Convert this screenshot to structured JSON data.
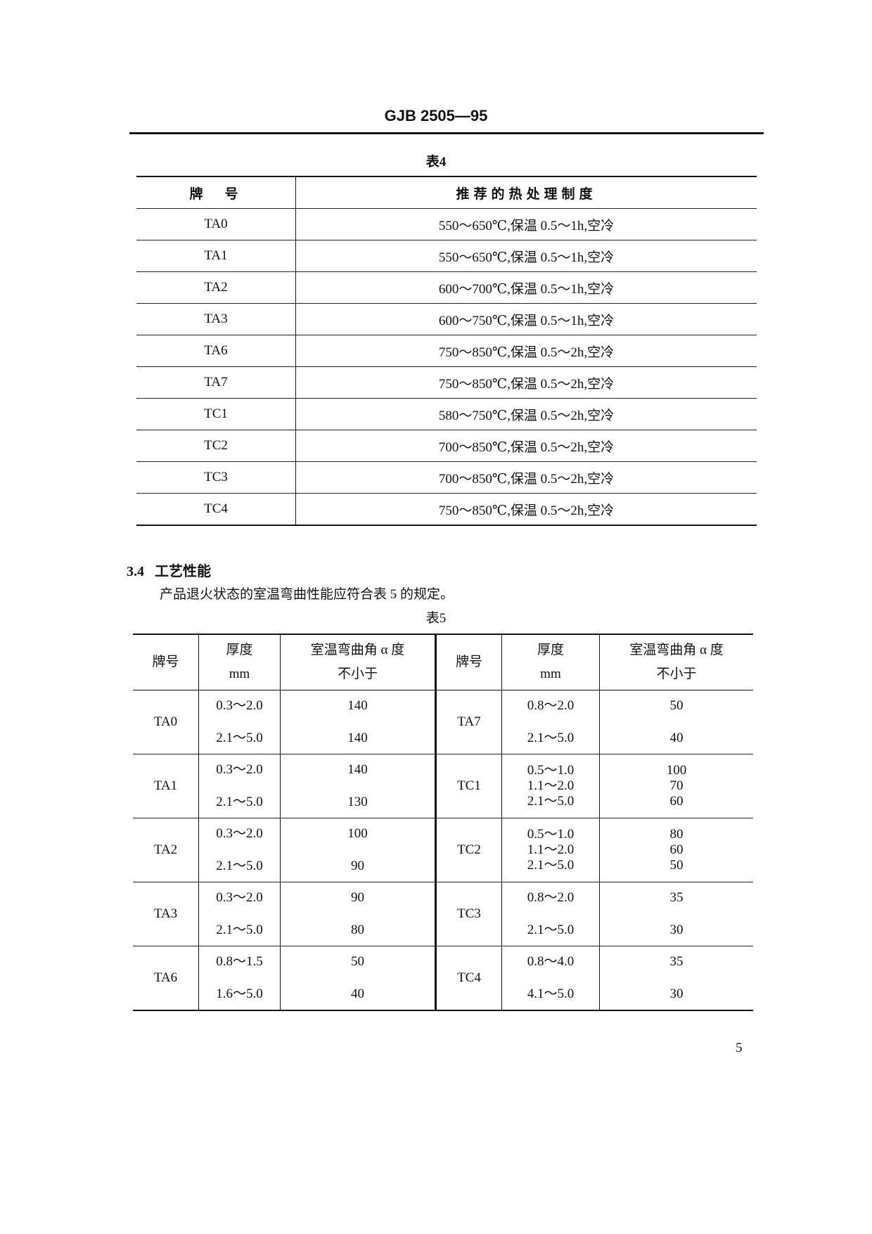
{
  "header": {
    "doc_code": "GJB 2505—95"
  },
  "table4": {
    "caption": "表4",
    "headers": [
      "牌　号",
      "推荐的热处理制度"
    ],
    "rows": [
      [
        "TA0",
        "550～650℃,保温 0.5～1h,空冷"
      ],
      [
        "TA1",
        "550～650℃,保温 0.5～1h,空冷"
      ],
      [
        "TA2",
        "600～700℃,保温 0.5～1h,空冷"
      ],
      [
        "TA3",
        "600～750℃,保温 0.5～1h,空冷"
      ],
      [
        "TA6",
        "750～850℃,保温 0.5～2h,空冷"
      ],
      [
        "TA7",
        "750～850℃,保温 0.5～2h,空冷"
      ],
      [
        "TC1",
        "580～750℃,保温 0.5～2h,空冷"
      ],
      [
        "TC2",
        "700～850℃,保温 0.5～2h,空冷"
      ],
      [
        "TC3",
        "700～850℃,保温 0.5～2h,空冷"
      ],
      [
        "TC4",
        "750～850℃,保温 0.5～2h,空冷"
      ]
    ]
  },
  "section": {
    "number": "3.4",
    "title": "工艺性能",
    "text": "产品退火状态的室温弯曲性能应符合表 5 的规定。"
  },
  "table5": {
    "caption": "表5",
    "headers": {
      "grade": "牌号",
      "thickness": "厚度",
      "thickness_unit": "mm",
      "angle": "室温弯曲角 α 度",
      "angle_note": "不小于"
    },
    "rows": [
      {
        "left": {
          "grade": "TA0",
          "thickness": [
            "0.3～2.0",
            "2.1～5.0"
          ],
          "angle": [
            "140",
            "140"
          ]
        },
        "right": {
          "grade": "TA7",
          "thickness": [
            "0.8～2.0",
            "2.1～5.0"
          ],
          "angle": [
            "50",
            "40"
          ]
        }
      },
      {
        "left": {
          "grade": "TA1",
          "thickness": [
            "0.3～2.0",
            "2.1～5.0"
          ],
          "angle": [
            "140",
            "130"
          ]
        },
        "right": {
          "grade": "TC1",
          "thickness": [
            "0.5～1.0",
            "1.1～2.0",
            "2.1～5.0"
          ],
          "angle": [
            "100",
            "70",
            "60"
          ]
        }
      },
      {
        "left": {
          "grade": "TA2",
          "thickness": [
            "0.3～2.0",
            "2.1～5.0"
          ],
          "angle": [
            "100",
            "90"
          ]
        },
        "right": {
          "grade": "TC2",
          "thickness": [
            "0.5～1.0",
            "1.1～2.0",
            "2.1～5.0"
          ],
          "angle": [
            "80",
            "60",
            "50"
          ]
        }
      },
      {
        "left": {
          "grade": "TA3",
          "thickness": [
            "0.3～2.0",
            "2.1～5.0"
          ],
          "angle": [
            "90",
            "80"
          ]
        },
        "right": {
          "grade": "TC3",
          "thickness": [
            "0.8～2.0",
            "2.1～5.0"
          ],
          "angle": [
            "35",
            "30"
          ]
        }
      },
      {
        "left": {
          "grade": "TA6",
          "thickness": [
            "0.8～1.5",
            "1.6～5.0"
          ],
          "angle": [
            "50",
            "40"
          ]
        },
        "right": {
          "grade": "TC4",
          "thickness": [
            "0.8～4.0",
            "4.1～5.0"
          ],
          "angle": [
            "35",
            "30"
          ]
        }
      }
    ]
  },
  "footer": {
    "page_number": "5"
  }
}
